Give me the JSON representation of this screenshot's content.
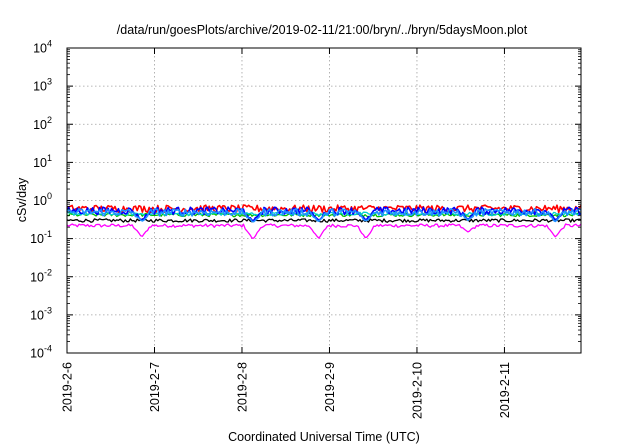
{
  "chart_data": {
    "type": "line",
    "title": "/data/run/goesPlots/archive/2019-02-11/21:00/bryn/../bryn/5daysMoon.plot",
    "xlabel": "Coordinated Universal Time (UTC)",
    "ylabel": "cSv/day",
    "y_scale": "log",
    "ylim": [
      0.0001,
      10000
    ],
    "y_ticks": [
      {
        "value": 0.0001,
        "base": "10",
        "exp": "-4"
      },
      {
        "value": 0.001,
        "base": "10",
        "exp": "-3"
      },
      {
        "value": 0.01,
        "base": "10",
        "exp": "-2"
      },
      {
        "value": 0.1,
        "base": "10",
        "exp": "-1"
      },
      {
        "value": 1,
        "base": "10",
        "exp": "0"
      },
      {
        "value": 10,
        "base": "10",
        "exp": "1"
      },
      {
        "value": 100,
        "base": "10",
        "exp": "2"
      },
      {
        "value": 1000,
        "base": "10",
        "exp": "3"
      },
      {
        "value": 10000,
        "base": "10",
        "exp": "4"
      }
    ],
    "xlim": [
      "2019-02-06T00:00",
      "2019-02-11T21:00"
    ],
    "x_ticks": [
      {
        "value": "2019-02-06T00:00",
        "label": "2019-2-6"
      },
      {
        "value": "2019-02-07T00:00",
        "label": "2019-2-7"
      },
      {
        "value": "2019-02-08T00:00",
        "label": "2019-2-8"
      },
      {
        "value": "2019-02-09T00:00",
        "label": "2019-2-9"
      },
      {
        "value": "2019-02-10T00:00",
        "label": "2019-2-10"
      },
      {
        "value": "2019-02-11T00:00",
        "label": "2019-2-11"
      }
    ],
    "grid": true,
    "series": [
      {
        "color": "#ff00ff",
        "level": 0.22,
        "dips": [
          [
            "2019-02-06T20:30",
            0.11
          ],
          [
            "2019-02-08T03:00",
            0.095
          ],
          [
            "2019-02-08T21:00",
            0.1
          ],
          [
            "2019-02-09T10:00",
            0.1
          ],
          [
            "2019-02-10T14:00",
            0.15
          ],
          [
            "2019-02-11T14:00",
            0.11
          ]
        ]
      },
      {
        "color": "#000000",
        "level": 0.3,
        "dips": []
      },
      {
        "color": "#00c000",
        "level": 0.42,
        "dips": []
      },
      {
        "color": "#00d0d0",
        "level": 0.45,
        "dips": []
      },
      {
        "color": "#ff0000",
        "level": 0.62,
        "dips": []
      },
      {
        "color": "#0000ff",
        "level": 0.55,
        "dips": [
          [
            "2019-02-06T20:30",
            0.3
          ],
          [
            "2019-02-08T03:00",
            0.28
          ],
          [
            "2019-02-08T21:00",
            0.3
          ],
          [
            "2019-02-09T10:00",
            0.3
          ],
          [
            "2019-02-10T14:00",
            0.32
          ],
          [
            "2019-02-11T14:00",
            0.3
          ]
        ]
      },
      {
        "color": "#1e90ff",
        "level": 0.5,
        "dips": [
          [
            "2019-02-06T20:30",
            0.28
          ],
          [
            "2019-02-08T03:00",
            0.26
          ],
          [
            "2019-02-08T21:00",
            0.28
          ],
          [
            "2019-02-09T10:00",
            0.28
          ],
          [
            "2019-02-10T14:00",
            0.3
          ],
          [
            "2019-02-11T14:00",
            0.28
          ]
        ]
      }
    ]
  }
}
